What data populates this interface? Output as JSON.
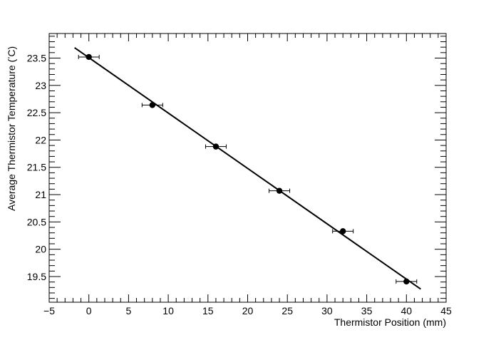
{
  "chart_data": {
    "type": "scatter",
    "title": "",
    "xlabel": "Thermistor Position (mm)",
    "ylabel_main": "Average Thermistor Temperature (",
    "ylabel_degree": "°",
    "ylabel_unit": "C)",
    "xlim": [
      -5,
      45
    ],
    "ylim": [
      19.03,
      23.95
    ],
    "x_ticks": [
      -5,
      0,
      5,
      10,
      15,
      20,
      25,
      30,
      35,
      40,
      45
    ],
    "y_ticks": [
      19.5,
      20,
      20.5,
      21,
      21.5,
      22,
      22.5,
      23,
      23.5
    ],
    "x_tick_labels": [
      "−5",
      "0",
      "5",
      "10",
      "15",
      "20",
      "25",
      "30",
      "35",
      "40",
      "45"
    ],
    "y_tick_labels": [
      "19.5",
      "20",
      "20.5",
      "21",
      "21.5",
      "22",
      "22.5",
      "23",
      "23.5"
    ],
    "grid": false,
    "points": [
      {
        "x": 0,
        "y": 23.52,
        "xerr": 1.3
      },
      {
        "x": 8,
        "y": 22.64,
        "xerr": 1.3
      },
      {
        "x": 16,
        "y": 21.88,
        "xerr": 1.3
      },
      {
        "x": 24,
        "y": 21.07,
        "xerr": 1.3
      },
      {
        "x": 32,
        "y": 20.33,
        "xerr": 1.3
      },
      {
        "x": 40,
        "y": 19.41,
        "xerr": 1.3
      }
    ],
    "fit_line": {
      "x": [
        -1.8,
        41.8
      ],
      "y": [
        23.69,
        19.27
      ]
    },
    "colors": {
      "marker": "#000000",
      "line": "#000000",
      "axis": "#000000"
    }
  }
}
